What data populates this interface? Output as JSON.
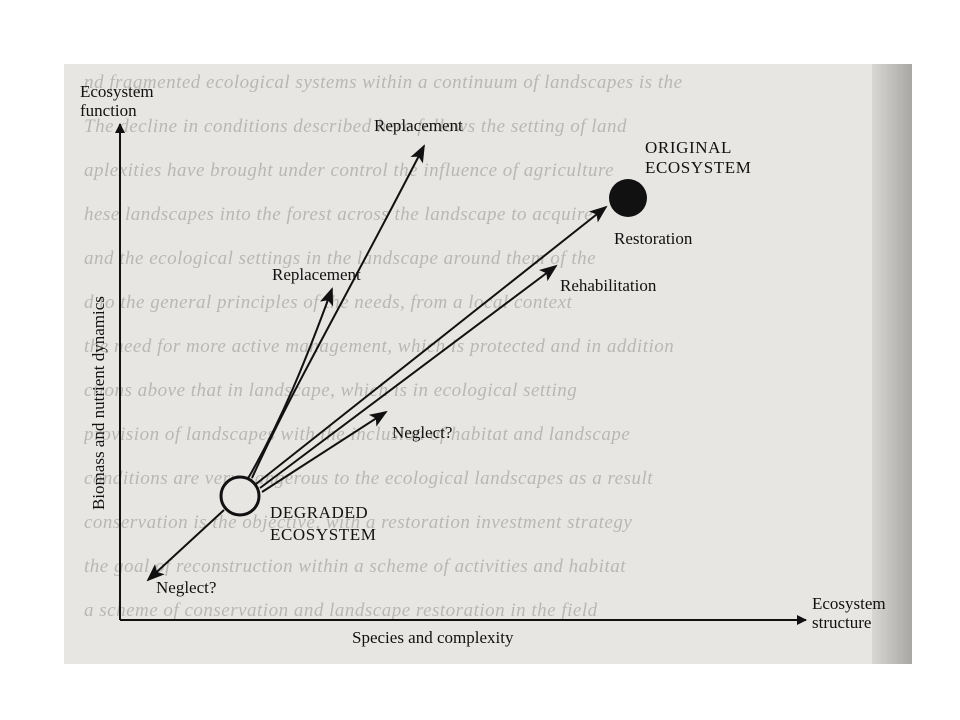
{
  "axes": {
    "y_label_top": "Ecosystem",
    "y_label_bottom": "function",
    "y_axis_title": "Biomass and nutrient dynamics",
    "x_axis_title": "Species and complexity",
    "x_label_top": "Ecosystem",
    "x_label_bottom": "structure"
  },
  "nodes": {
    "original_line1": "ORIGINAL",
    "original_line2": "ECOSYSTEM",
    "degraded_line1": "DEGRADED",
    "degraded_line2": "ECOSYSTEM"
  },
  "pathways": {
    "replacement_upper": "Replacement",
    "replacement_lower": "Replacement",
    "restoration": "Restoration",
    "rehabilitation": "Rehabilitation",
    "neglect_upper": "Neglect?",
    "neglect_lower": "Neglect?"
  },
  "colors": {
    "ink": "#111111",
    "paper": "#e8e6e3",
    "ghost_text": "#b9b7b4"
  }
}
